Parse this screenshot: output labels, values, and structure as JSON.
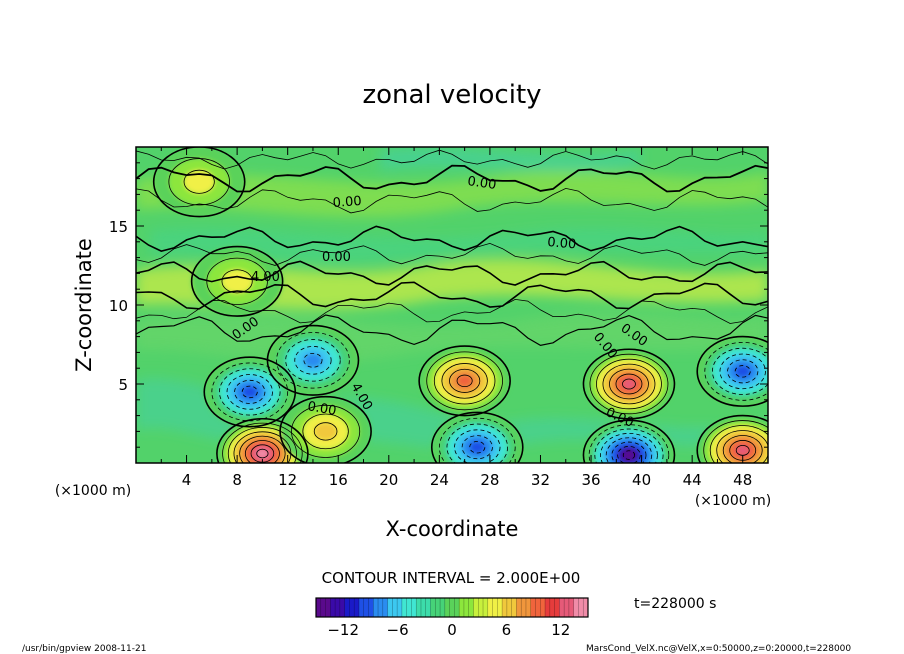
{
  "chart_data": {
    "type": "heatmap",
    "title": "zonal velocity",
    "xlabel": "X-coordinate",
    "ylabel": "Z-coordinate",
    "x_unit_note": "(×1000 m)",
    "y_unit_note": "(×1000 m)",
    "xlim": [
      0,
      50
    ],
    "ylim": [
      0,
      20
    ],
    "x_ticks": [
      4,
      8,
      12,
      16,
      20,
      24,
      28,
      32,
      36,
      40,
      44,
      48
    ],
    "y_ticks": [
      5,
      10,
      15
    ],
    "contour_interval_label": "CONTOUR INTERVAL = 2.000E+00",
    "time_label": "t=228000  s",
    "colorbar": {
      "min": -15,
      "max": 15,
      "ticks": [
        -12,
        -6,
        0,
        6,
        12
      ],
      "colors": [
        "#5a0a8c",
        "#3a0aa8",
        "#1a1ac8",
        "#1e50e6",
        "#2a8cf0",
        "#3cc8f0",
        "#40e6d2",
        "#3cdcaa",
        "#46d278",
        "#5ad25a",
        "#8ce63c",
        "#c8f03c",
        "#f0f046",
        "#f0c83c",
        "#f0963c",
        "#f0643c",
        "#e63c3c",
        "#e65a78",
        "#f08ca8"
      ]
    },
    "contour_labels": [
      "0.00",
      "0.00",
      "0.00",
      "0.00",
      "4.00",
      "0.00",
      "0.00",
      "0.00",
      "4.00",
      "0.00"
    ],
    "features": [
      {
        "x": 9,
        "z": 4.5,
        "value": -10
      },
      {
        "x": 14,
        "z": 6.5,
        "value": -8
      },
      {
        "x": 26,
        "z": 5.2,
        "value": 9
      },
      {
        "x": 39,
        "z": 5.0,
        "value": 11
      },
      {
        "x": 48,
        "z": 5.8,
        "value": -9
      },
      {
        "x": 10,
        "z": 0.6,
        "value": 14
      },
      {
        "x": 27,
        "z": 1.0,
        "value": -10
      },
      {
        "x": 39,
        "z": 0.5,
        "value": -13
      },
      {
        "x": 48,
        "z": 0.8,
        "value": 11
      },
      {
        "x": 15,
        "z": 2.0,
        "value": 6
      },
      {
        "x": 5,
        "z": 17.8,
        "value": 4
      },
      {
        "x": 8,
        "z": 11.5,
        "value": 4
      }
    ]
  },
  "footer": {
    "program": "/usr/bin/gpview   2008-11-21",
    "source": "MarsCond_VelX.nc@VelX,x=0:50000,z=0:20000,t=228000"
  }
}
